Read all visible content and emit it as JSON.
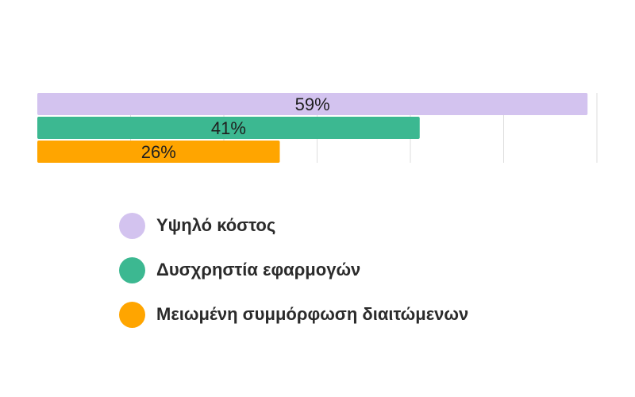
{
  "chart_data": {
    "type": "bar",
    "orientation": "horizontal",
    "categories": [
      "Υψηλό κόστος",
      "Δυσχρηστία εφαρμογών",
      "Μειωμένη συμμόρφωση διαιτώμενων"
    ],
    "values": [
      59,
      41,
      26
    ],
    "data_labels": [
      "59%",
      "41%",
      "26%"
    ],
    "colors": [
      "#d3c3ef",
      "#3cb891",
      "#ffa500"
    ],
    "xlim": [
      0,
      60
    ],
    "grid": true,
    "legend_position": "bottom",
    "title": "",
    "xlabel": "",
    "ylabel": ""
  },
  "legend": {
    "items": [
      {
        "label": "Υψηλό κόστος",
        "color": "#d3c3ef"
      },
      {
        "label": "Δυσχρηστία εφαρμογών",
        "color": "#3cb891"
      },
      {
        "label": "Μειωμένη συμμόρφωση διαιτώμενων",
        "color": "#ffa500"
      }
    ]
  }
}
